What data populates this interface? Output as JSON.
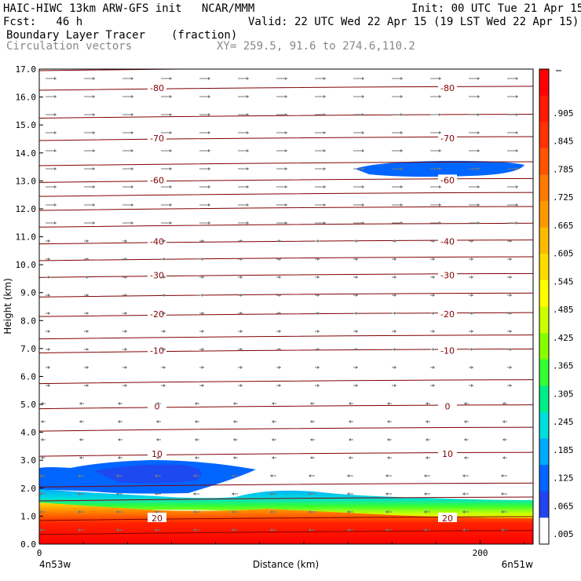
{
  "header": {
    "model": "HAIC-HIWC 13km ARW-GFS init   NCAR/MMM",
    "init": "Init: 00 UTC Tue 21 Apr 15",
    "fcst": "Fcst:   46 h",
    "valid": "Valid: 22 UTC Wed 22 Apr 15 (19 LST Wed 22 Apr 15)",
    "field": "Boundary Layer Tracer",
    "units": "(fraction)",
    "vectors": "Circulation vectors",
    "xy": "XY= 259.5, 91.6 to 274.6,110.2"
  },
  "chart_data": {
    "type": "heatmap",
    "xlabel": "Distance (km)",
    "ylabel": "Height (km)",
    "xlim": [
      0,
      224
    ],
    "ylim": [
      0.0,
      17.0
    ],
    "x_ticks": [
      {
        "value": 0,
        "label": "0"
      },
      {
        "value": 200,
        "label": "200"
      }
    ],
    "y_ticks": [
      "0.0",
      "1.0",
      "2.0",
      "3.0",
      "4.0",
      "5.0",
      "6.0",
      "7.0",
      "8.0",
      "9.0",
      "10.0",
      "11.0",
      "12.0",
      "13.0",
      "14.0",
      "15.0",
      "16.0",
      "17.0"
    ],
    "endpoint_labels": {
      "left": "4n53w",
      "right": "6n51w"
    },
    "colorbar": {
      "labels": [
        ".905",
        ".845",
        ".785",
        ".725",
        ".665",
        ".605",
        ".545",
        ".485",
        ".425",
        ".365",
        ".305",
        ".245",
        ".185",
        ".125",
        ".065",
        ".005"
      ],
      "colors": [
        "#ff0000",
        "#ff1a00",
        "#ff3300",
        "#ff5500",
        "#ff7a00",
        "#ff9900",
        "#ffbb00",
        "#ffdd00",
        "#ffff00",
        "#ccff00",
        "#88ff00",
        "#33ff33",
        "#00ee88",
        "#00dddd",
        "#00aaff",
        "#0066ff",
        "#2244ee",
        "#ffffff"
      ]
    },
    "temperature_contours": [
      {
        "label": "-80",
        "height_km": 16.3
      },
      {
        "label": "-70",
        "height_km": 14.5
      },
      {
        "label": "-60",
        "height_km": 13.0
      },
      {
        "label": "-40",
        "height_km": 10.8
      },
      {
        "label": "-30",
        "height_km": 9.6
      },
      {
        "label": "-20",
        "height_km": 8.2
      },
      {
        "label": "-10",
        "height_km": 6.9
      },
      {
        "label": "0",
        "height_km": 4.9
      },
      {
        "label": "10",
        "height_km": 3.2
      },
      {
        "label": "20",
        "height_km": 0.9
      }
    ],
    "grid": false,
    "legend": "colorbar-right"
  }
}
